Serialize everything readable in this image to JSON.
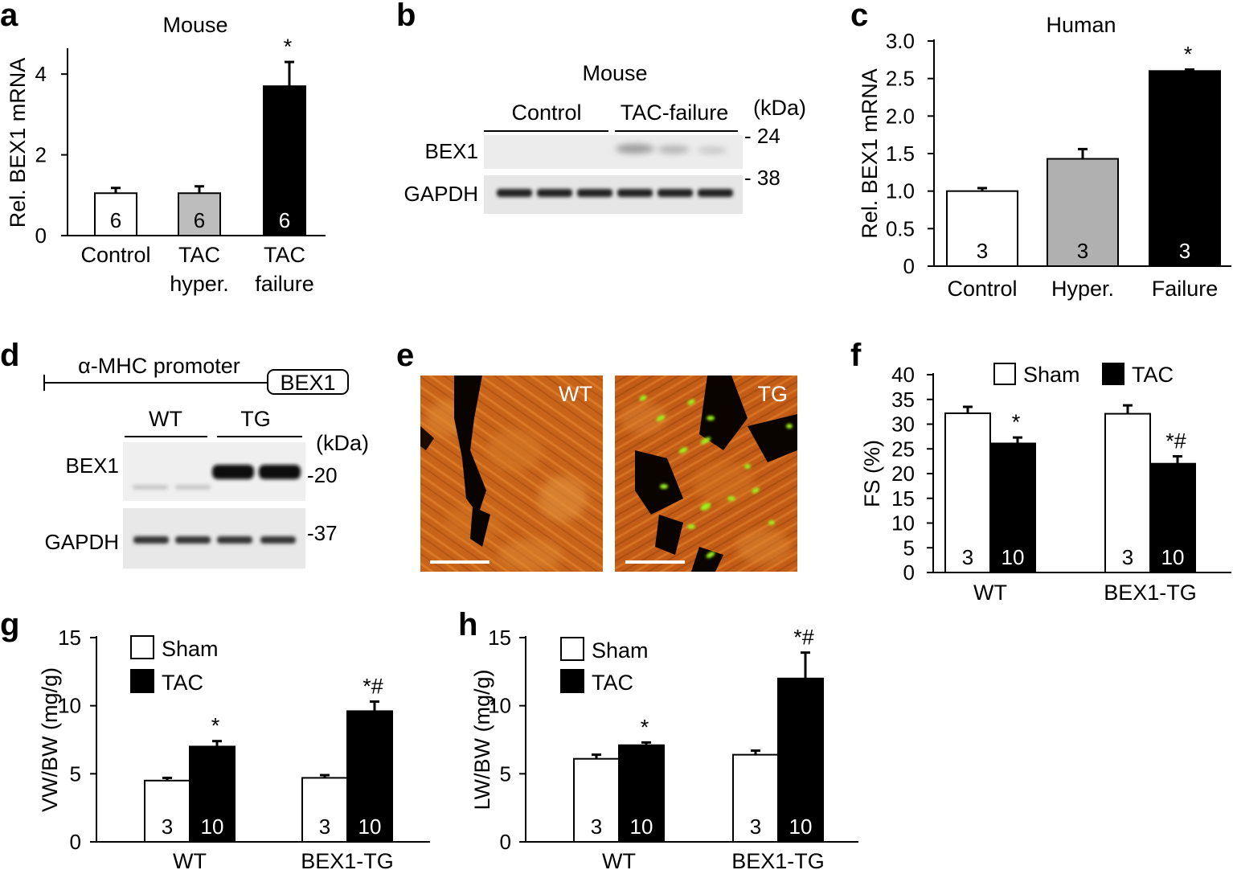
{
  "panel_labels": [
    "a",
    "b",
    "c",
    "d",
    "e",
    "f",
    "g",
    "h"
  ],
  "chart_data": [
    {
      "panel": "a",
      "type": "bar",
      "title": "Mouse",
      "ylabel": "Rel. BEX1 mRNA",
      "ylim": [
        0,
        4.6
      ],
      "yticks": [
        "0",
        "2",
        "4"
      ],
      "categories": [
        "Control",
        "TAC hyper.",
        "TAC failure"
      ],
      "values": [
        1.05,
        1.05,
        3.7
      ],
      "errors": [
        0.13,
        0.17,
        0.6
      ],
      "n_labels": [
        "6",
        "6",
        "6"
      ],
      "annotations": [
        "",
        "",
        "*"
      ],
      "bar_colors": [
        "#ffffff",
        "#bdbdbd",
        "#000000"
      ]
    },
    {
      "panel": "c",
      "type": "bar",
      "title": "Human",
      "ylabel": "Rel. BEX1 mRNA",
      "ylim": [
        0,
        3.0
      ],
      "yticks": [
        "0",
        "0.5",
        "1.0",
        "1.5",
        "2.0",
        "2.5",
        "3.0"
      ],
      "categories": [
        "Control",
        "Hyper.",
        "Failure"
      ],
      "values": [
        1.0,
        1.43,
        2.6
      ],
      "errors": [
        0.04,
        0.13,
        0.02
      ],
      "n_labels": [
        "3",
        "3",
        "3"
      ],
      "annotations": [
        "",
        "",
        "*"
      ],
      "bar_colors": [
        "#ffffff",
        "#b0b0b0",
        "#000000"
      ]
    },
    {
      "panel": "f",
      "type": "bar",
      "ylabel": "FS (%)",
      "ylim": [
        0,
        40
      ],
      "yticks": [
        "0",
        "5",
        "10",
        "15",
        "20",
        "25",
        "30",
        "35",
        "40"
      ],
      "categories": [
        "WT",
        "BEX1-TG"
      ],
      "legend": [
        "Sham",
        "TAC"
      ],
      "legend_position": "top",
      "series": [
        {
          "name": "Sham",
          "values": [
            32.2,
            32.1
          ],
          "errors": [
            1.3,
            1.7
          ],
          "n_labels": [
            "3",
            "3"
          ],
          "annotations": [
            "",
            ""
          ]
        },
        {
          "name": "TAC",
          "values": [
            26.1,
            22.0
          ],
          "errors": [
            1.2,
            1.5
          ],
          "n_labels": [
            "10",
            "10"
          ],
          "annotations": [
            "*",
            "*#"
          ]
        }
      ]
    },
    {
      "panel": "g",
      "type": "bar",
      "ylabel": "VW/BW (mg/g)",
      "ylim": [
        0,
        15
      ],
      "yticks": [
        "0",
        "5",
        "10",
        "15"
      ],
      "categories": [
        "WT",
        "BEX1-TG"
      ],
      "legend": [
        "Sham",
        "TAC"
      ],
      "legend_position": "top-left",
      "series": [
        {
          "name": "Sham",
          "values": [
            4.5,
            4.7
          ],
          "errors": [
            0.2,
            0.2
          ],
          "n_labels": [
            "3",
            "3"
          ],
          "annotations": [
            "",
            ""
          ]
        },
        {
          "name": "TAC",
          "values": [
            7.0,
            9.6
          ],
          "errors": [
            0.4,
            0.7
          ],
          "n_labels": [
            "10",
            "10"
          ],
          "annotations": [
            "*",
            "*#"
          ]
        }
      ]
    },
    {
      "panel": "h",
      "type": "bar",
      "ylabel": "LW/BW (mg/g)",
      "ylim": [
        0,
        15
      ],
      "yticks": [
        "0",
        "5",
        "10",
        "15"
      ],
      "categories": [
        "WT",
        "BEX1-TG"
      ],
      "legend": [
        "Sham",
        "TAC"
      ],
      "legend_position": "top-left",
      "series": [
        {
          "name": "Sham",
          "values": [
            6.1,
            6.4
          ],
          "errors": [
            0.3,
            0.3
          ],
          "n_labels": [
            "3",
            "3"
          ],
          "annotations": [
            "",
            ""
          ]
        },
        {
          "name": "TAC",
          "values": [
            7.1,
            12.0
          ],
          "errors": [
            0.2,
            1.9
          ],
          "n_labels": [
            "10",
            "10"
          ],
          "annotations": [
            "*",
            "*#"
          ]
        }
      ]
    }
  ],
  "blot_b": {
    "title": "Mouse",
    "groups": [
      "Control",
      "TAC-failure"
    ],
    "kda_label": "(kDa)",
    "rows": [
      "BEX1",
      "GAPDH"
    ],
    "markers": [
      "24",
      "38"
    ]
  },
  "construct_d": {
    "promoter_label": "α-MHC promoter",
    "gene_label": "BEX1"
  },
  "blot_d": {
    "groups": [
      "WT",
      "TG"
    ],
    "kda_label": "(kDa)",
    "rows": [
      "BEX1",
      "GAPDH"
    ],
    "markers": [
      "20",
      "37"
    ]
  },
  "micro_e": {
    "labels": [
      "WT",
      "TG"
    ]
  },
  "colors": {
    "tissue": "#c8641a",
    "tissue_dark": "#8a3a0c",
    "nuclei": "#9ef21a",
    "gray_bar_a": "#bdbdbd",
    "gray_bar_c": "#b0b0b0"
  }
}
